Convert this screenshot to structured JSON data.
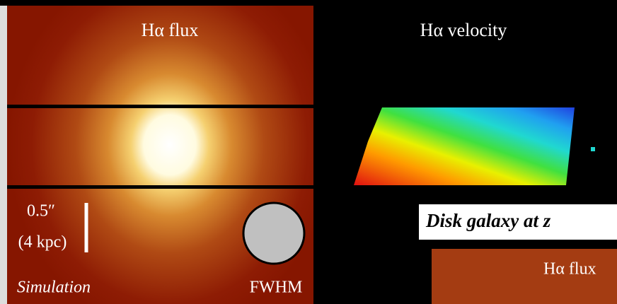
{
  "left_panel": {
    "title": "Hα flux",
    "scale_bar": {
      "angular": "0.5″",
      "physical": "(4 kpc)"
    },
    "label": "Simulation",
    "beam_label": "FWHM"
  },
  "right_panel": {
    "title": "Hα velocity"
  },
  "caption": "Disk galaxy at z",
  "inset": {
    "title": "Hα flux"
  }
}
